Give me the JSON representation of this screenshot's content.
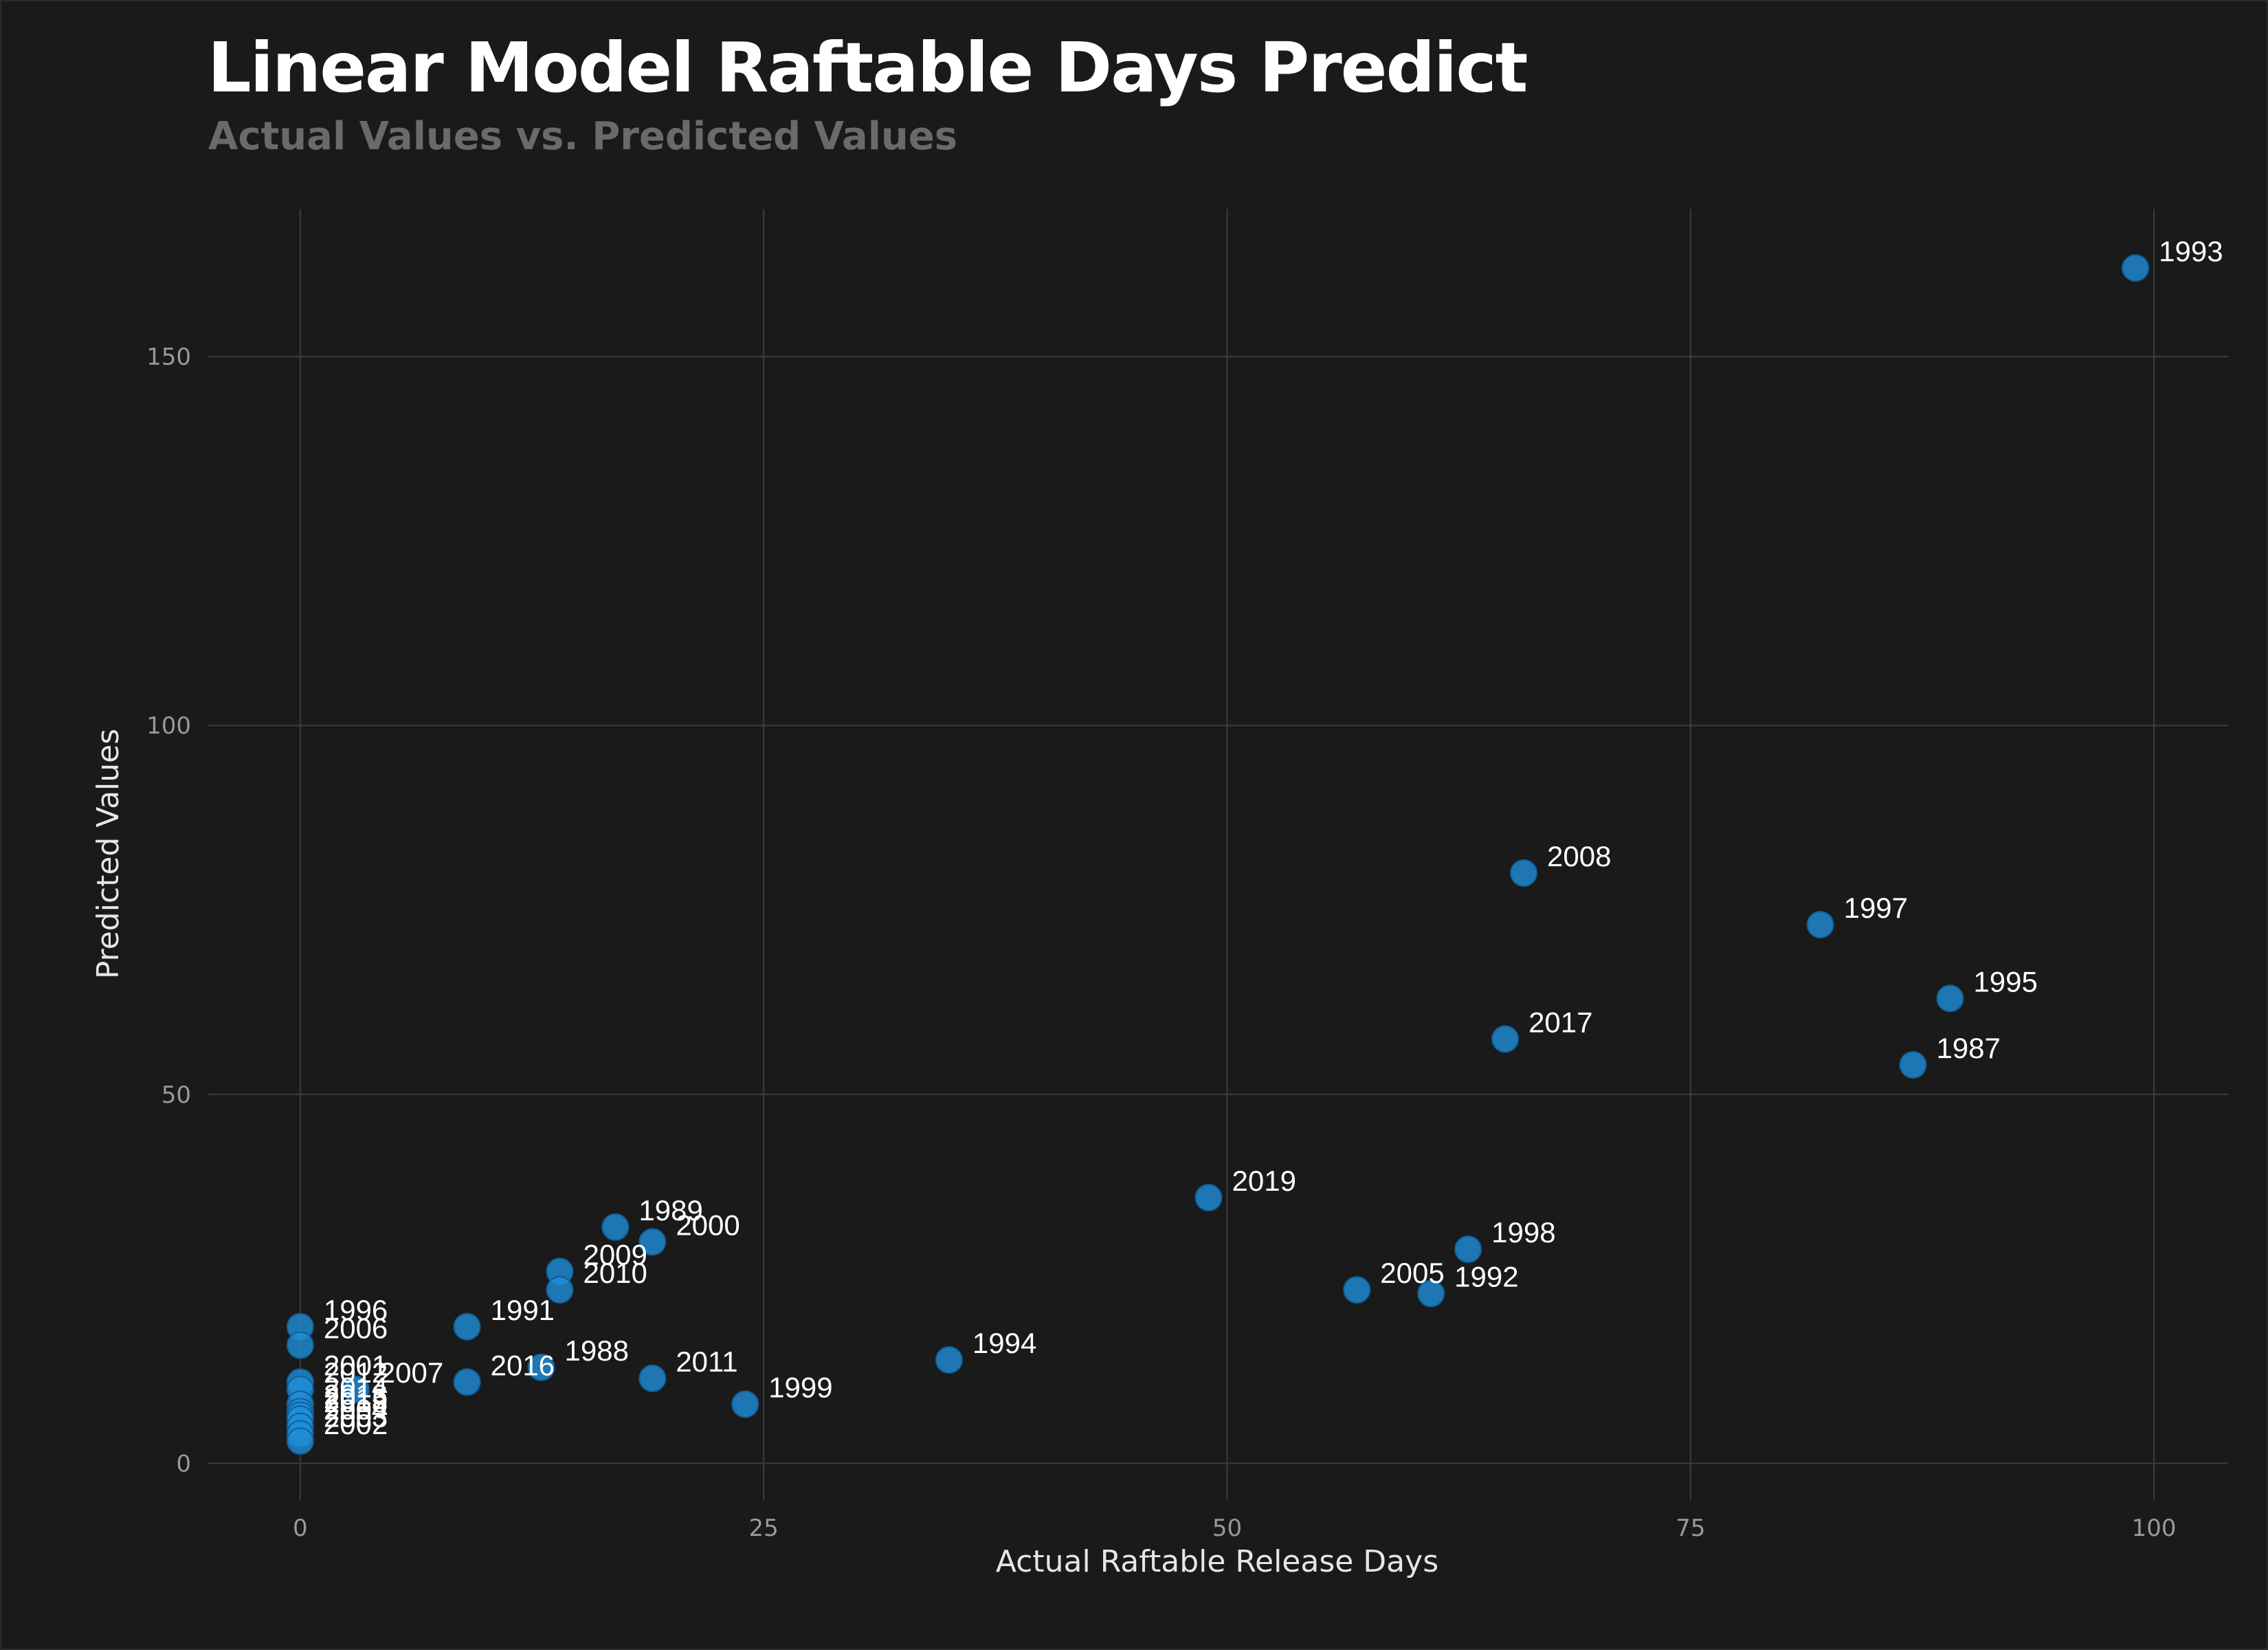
{
  "chart_data": {
    "type": "scatter",
    "title": "Linear Model Raftable Days Predict",
    "subtitle": "Actual Values vs. Predicted Values",
    "xlabel": "Actual Raftable Release Days",
    "ylabel": "Predicted Values",
    "xlim": [
      -5,
      104
    ],
    "ylim": [
      -5,
      170
    ],
    "xticks": [
      0,
      25,
      50,
      75,
      100
    ],
    "yticks": [
      0,
      50,
      100,
      150
    ],
    "grid": true,
    "point_color": "#1f8fd8",
    "points": [
      {
        "label": "1993",
        "x": 99,
        "y": 162
      },
      {
        "label": "2008",
        "x": 66,
        "y": 80
      },
      {
        "label": "1997",
        "x": 82,
        "y": 73
      },
      {
        "label": "1995",
        "x": 89,
        "y": 63
      },
      {
        "label": "2017",
        "x": 65,
        "y": 57.5
      },
      {
        "label": "1987",
        "x": 87,
        "y": 54
      },
      {
        "label": "2019",
        "x": 49,
        "y": 36
      },
      {
        "label": "1989",
        "x": 17,
        "y": 32
      },
      {
        "label": "2000",
        "x": 19,
        "y": 30
      },
      {
        "label": "1998",
        "x": 63,
        "y": 29
      },
      {
        "label": "2009",
        "x": 14,
        "y": 26
      },
      {
        "label": "2010",
        "x": 14,
        "y": 23.5
      },
      {
        "label": "2005",
        "x": 57,
        "y": 23.5
      },
      {
        "label": "1992",
        "x": 61,
        "y": 23
      },
      {
        "label": "1991",
        "x": 9,
        "y": 18.5
      },
      {
        "label": "1996",
        "x": 0,
        "y": 18.5
      },
      {
        "label": "2006",
        "x": 0,
        "y": 16
      },
      {
        "label": "1994",
        "x": 35,
        "y": 14
      },
      {
        "label": "1988",
        "x": 13,
        "y": 13
      },
      {
        "label": "2011",
        "x": 19,
        "y": 11.5
      },
      {
        "label": "2016",
        "x": 9,
        "y": 11
      },
      {
        "label": "2001",
        "x": 0,
        "y": 11
      },
      {
        "label": "2012",
        "x": 0,
        "y": 10
      },
      {
        "label": "2007",
        "x": 3,
        "y": 10
      },
      {
        "label": "1999",
        "x": 24,
        "y": 8
      },
      {
        "label": "2014",
        "x": 0,
        "y": 8
      },
      {
        "label": "2013",
        "x": 0,
        "y": 7
      },
      {
        "label": "2015",
        "x": 0,
        "y": 6.5
      },
      {
        "label": "2018",
        "x": 0,
        "y": 6
      },
      {
        "label": "2004",
        "x": 0,
        "y": 5
      },
      {
        "label": "2003",
        "x": 0,
        "y": 4
      },
      {
        "label": "2002",
        "x": 0,
        "y": 3
      }
    ]
  }
}
